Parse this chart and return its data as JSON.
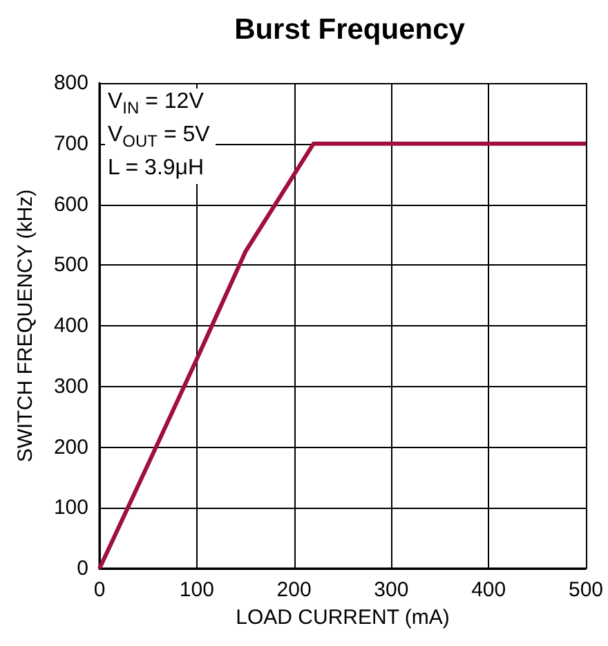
{
  "chart_data": {
    "type": "line",
    "title": "Burst Frequency",
    "xlabel": "LOAD CURRENT (mA)",
    "ylabel": "SWITCH FREQUENCY (kHz)",
    "x": [
      0,
      50,
      100,
      150,
      220,
      500
    ],
    "series": [
      {
        "color": "#a0103a",
        "values": [
          0,
          172,
          345,
          522,
          700,
          700
        ]
      }
    ],
    "xlim": [
      0,
      500
    ],
    "xticks": [
      0,
      100,
      200,
      300,
      400,
      500
    ],
    "ylim": [
      0,
      800
    ],
    "yticks": [
      0,
      100,
      200,
      300,
      400,
      500,
      600,
      700,
      800
    ],
    "grid": true,
    "marker": "none",
    "line_style": "solid",
    "annotations": [
      "V$_{IN}$ = 12V",
      "V$_{OUT}$ = 5V",
      "L = 3.9μH"
    ]
  }
}
